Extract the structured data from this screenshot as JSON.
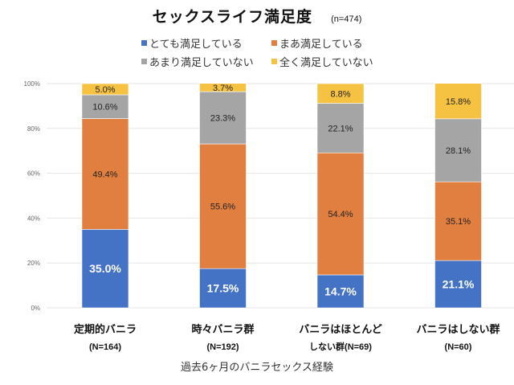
{
  "chart_data": {
    "type": "bar",
    "stacked": true,
    "title": "セックスライフ満足度",
    "subtitle": "(n=474)",
    "xlabel": "過去6ヶ月のバニラセックス経験",
    "ylabel": "",
    "ylim": [
      0,
      100
    ],
    "yticks": [
      "0%",
      "20%",
      "40%",
      "60%",
      "80%",
      "100%"
    ],
    "grid": true,
    "legend_position": "top",
    "categories": [
      {
        "line1": "定期的バニラ",
        "line2": "(N=164)"
      },
      {
        "line1": "時々バニラ群",
        "line2": "(N=192)"
      },
      {
        "line1": "バニラはほとんど",
        "line2": "しない群(N=69)"
      },
      {
        "line1": "バニラはしない群",
        "line2": "(N=60)"
      }
    ],
    "series": [
      {
        "name": "とても満足している",
        "color": "#4472c4",
        "values": [
          35.0,
          17.5,
          14.7,
          21.1
        ],
        "labels": [
          "35.0%",
          "17.5%",
          "14.7%",
          "21.1%"
        ]
      },
      {
        "name": "まあ満足している",
        "color": "#e07f40",
        "values": [
          49.4,
          55.6,
          54.4,
          35.1
        ],
        "labels": [
          "49.4%",
          "55.6%",
          "54.4%",
          "35.1%"
        ]
      },
      {
        "name": "あまり満足していない",
        "color": "#a5a5a5",
        "values": [
          10.6,
          23.3,
          22.1,
          28.1
        ],
        "labels": [
          "10.6%",
          "23.3%",
          "22.1%",
          "28.1%"
        ]
      },
      {
        "name": "全く満足していない",
        "color": "#f5c242",
        "values": [
          5.0,
          3.7,
          8.8,
          15.8
        ],
        "labels": [
          "5.0%",
          "3.7%",
          "8.8%",
          "15.8%"
        ]
      }
    ]
  }
}
